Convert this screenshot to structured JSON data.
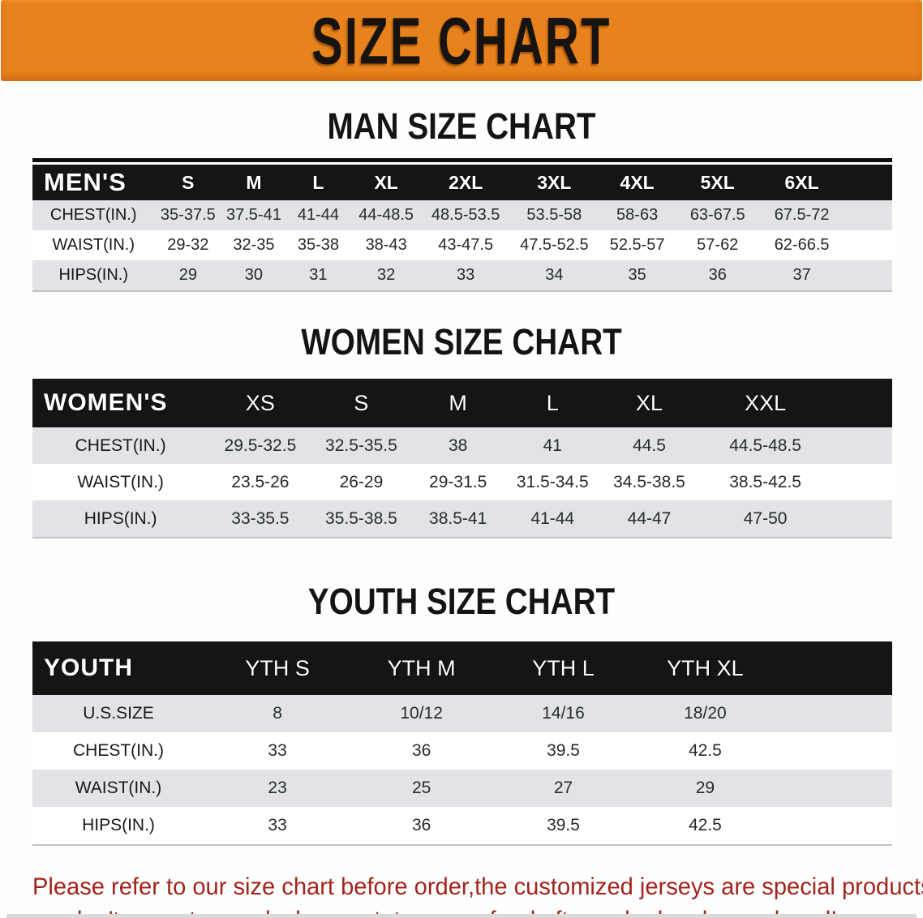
{
  "banner": {
    "title": "SIZE CHART",
    "bg_color": "#e8821c",
    "text_color": "#171310"
  },
  "sections": [
    {
      "heading": "MAN SIZE CHART",
      "label": "MEN'S",
      "columns": [
        "S",
        "M",
        "L",
        "XL",
        "2XL",
        "3XL",
        "4XL",
        "5XL",
        "6XL"
      ],
      "rows": [
        {
          "label": "CHEST(IN.)",
          "values": [
            "35-37.5",
            "37.5-41",
            "41-44",
            "44-48.5",
            "48.5-53.5",
            "53.5-58",
            "58-63",
            "63-67.5",
            "67.5-72"
          ]
        },
        {
          "label": "WAIST(IN.)",
          "values": [
            "29-32",
            "32-35",
            "35-38",
            "38-43",
            "43-47.5",
            "47.5-52.5",
            "52.5-57",
            "57-62",
            "62-66.5"
          ]
        },
        {
          "label": "HIPS(IN.)",
          "values": [
            "29",
            "30",
            "31",
            "32",
            "33",
            "34",
            "35",
            "36",
            "37"
          ]
        }
      ]
    },
    {
      "heading": "WOMEN SIZE CHART",
      "label": "WOMEN'S",
      "columns": [
        "XS",
        "S",
        "M",
        "L",
        "XL",
        "XXL"
      ],
      "rows": [
        {
          "label": "CHEST(IN.)",
          "values": [
            "29.5-32.5",
            "32.5-35.5",
            "38",
            "41",
            "44.5",
            "44.5-48.5"
          ]
        },
        {
          "label": "WAIST(IN.)",
          "values": [
            "23.5-26",
            "26-29",
            "29-31.5",
            "31.5-34.5",
            "34.5-38.5",
            "38.5-42.5"
          ]
        },
        {
          "label": "HIPS(IN.)",
          "values": [
            "33-35.5",
            "35.5-38.5",
            "38.5-41",
            "41-44",
            "44-47",
            "47-50"
          ]
        }
      ]
    },
    {
      "heading": "YOUTH SIZE CHART",
      "label": "YOUTH",
      "columns": [
        "YTH S",
        "YTH M",
        "YTH L",
        "YTH XL"
      ],
      "rows": [
        {
          "label": "U.S.SIZE",
          "values": [
            "8",
            "10/12",
            "14/16",
            "18/20"
          ]
        },
        {
          "label": "CHEST(IN.)",
          "values": [
            "33",
            "36",
            "39.5",
            "42.5"
          ]
        },
        {
          "label": "WAIST(IN.)",
          "values": [
            "23",
            "25",
            "27",
            "29"
          ]
        },
        {
          "label": "HIPS(IN.)",
          "values": [
            "33",
            "36",
            "39.5",
            "42.5"
          ]
        }
      ]
    }
  ],
  "disclaimer": {
    "line1": "Please refer to our size chart before order,the customized jerseys are special products,",
    "line2": "we don't accept cancel, change, teturn or refund after order has been placed!",
    "color": "#a3241c"
  }
}
